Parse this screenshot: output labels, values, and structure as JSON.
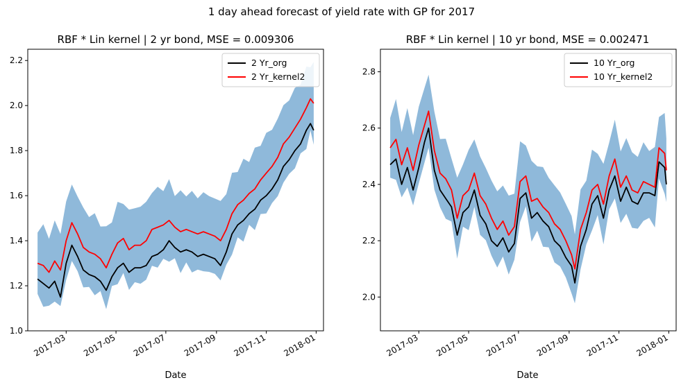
{
  "suptitle": "1 day ahead forecast of yield rate with GP for 2017",
  "chart_data": [
    {
      "type": "line",
      "title": "RBF * Lin kernel | 2 yr bond, MSE = 0.009306",
      "xlabel": "Date",
      "ylabel": "",
      "x_tick_labels": [
        "2017-03",
        "2017-05",
        "2017-07",
        "2017-09",
        "2017-11",
        "2018-01"
      ],
      "y_tick_labels": [
        "1.0",
        "1.2",
        "1.4",
        "1.6",
        "1.8",
        "2.0",
        "2.2"
      ],
      "ylim": [
        1.0,
        2.25
      ],
      "grid": false,
      "legend_position": "top-right",
      "band_color": "#8fb9da",
      "series": [
        {
          "name": "2 Yr_org",
          "color": "#000000",
          "points": [
            [
              "2017-01-25",
              1.23
            ],
            [
              "2017-02-01",
              1.21
            ],
            [
              "2017-02-08",
              1.19
            ],
            [
              "2017-02-15",
              1.22
            ],
            [
              "2017-02-22",
              1.15
            ],
            [
              "2017-03-01",
              1.3
            ],
            [
              "2017-03-08",
              1.38
            ],
            [
              "2017-03-15",
              1.33
            ],
            [
              "2017-03-22",
              1.27
            ],
            [
              "2017-03-29",
              1.25
            ],
            [
              "2017-04-05",
              1.24
            ],
            [
              "2017-04-12",
              1.22
            ],
            [
              "2017-04-19",
              1.18
            ],
            [
              "2017-04-26",
              1.24
            ],
            [
              "2017-05-03",
              1.28
            ],
            [
              "2017-05-10",
              1.3
            ],
            [
              "2017-05-17",
              1.26
            ],
            [
              "2017-05-24",
              1.28
            ],
            [
              "2017-05-31",
              1.28
            ],
            [
              "2017-06-07",
              1.29
            ],
            [
              "2017-06-14",
              1.33
            ],
            [
              "2017-06-21",
              1.34
            ],
            [
              "2017-06-28",
              1.36
            ],
            [
              "2017-07-05",
              1.4
            ],
            [
              "2017-07-12",
              1.37
            ],
            [
              "2017-07-19",
              1.35
            ],
            [
              "2017-07-26",
              1.36
            ],
            [
              "2017-08-02",
              1.35
            ],
            [
              "2017-08-09",
              1.33
            ],
            [
              "2017-08-16",
              1.34
            ],
            [
              "2017-08-23",
              1.33
            ],
            [
              "2017-08-30",
              1.32
            ],
            [
              "2017-09-06",
              1.29
            ],
            [
              "2017-09-13",
              1.35
            ],
            [
              "2017-09-20",
              1.43
            ],
            [
              "2017-09-27",
              1.47
            ],
            [
              "2017-10-04",
              1.49
            ],
            [
              "2017-10-11",
              1.52
            ],
            [
              "2017-10-18",
              1.54
            ],
            [
              "2017-10-25",
              1.58
            ],
            [
              "2017-11-01",
              1.6
            ],
            [
              "2017-11-08",
              1.63
            ],
            [
              "2017-11-15",
              1.67
            ],
            [
              "2017-11-22",
              1.73
            ],
            [
              "2017-11-29",
              1.76
            ],
            [
              "2017-12-06",
              1.8
            ],
            [
              "2017-12-13",
              1.83
            ],
            [
              "2017-12-20",
              1.89
            ],
            [
              "2017-12-25",
              1.92
            ],
            [
              "2017-12-29",
              1.89
            ]
          ]
        },
        {
          "name": "2 Yr_kernel2",
          "color": "#ff0000",
          "points": [
            [
              "2017-01-25",
              1.3
            ],
            [
              "2017-02-01",
              1.29
            ],
            [
              "2017-02-08",
              1.26
            ],
            [
              "2017-02-15",
              1.31
            ],
            [
              "2017-02-22",
              1.27
            ],
            [
              "2017-03-01",
              1.4
            ],
            [
              "2017-03-08",
              1.48
            ],
            [
              "2017-03-15",
              1.43
            ],
            [
              "2017-03-22",
              1.37
            ],
            [
              "2017-03-29",
              1.35
            ],
            [
              "2017-04-05",
              1.34
            ],
            [
              "2017-04-12",
              1.32
            ],
            [
              "2017-04-19",
              1.28
            ],
            [
              "2017-04-26",
              1.34
            ],
            [
              "2017-05-03",
              1.39
            ],
            [
              "2017-05-10",
              1.41
            ],
            [
              "2017-05-17",
              1.36
            ],
            [
              "2017-05-24",
              1.38
            ],
            [
              "2017-05-31",
              1.38
            ],
            [
              "2017-06-07",
              1.4
            ],
            [
              "2017-06-14",
              1.45
            ],
            [
              "2017-06-21",
              1.46
            ],
            [
              "2017-06-28",
              1.47
            ],
            [
              "2017-07-05",
              1.49
            ],
            [
              "2017-07-12",
              1.46
            ],
            [
              "2017-07-19",
              1.44
            ],
            [
              "2017-07-26",
              1.45
            ],
            [
              "2017-08-02",
              1.44
            ],
            [
              "2017-08-09",
              1.43
            ],
            [
              "2017-08-16",
              1.44
            ],
            [
              "2017-08-23",
              1.43
            ],
            [
              "2017-08-30",
              1.42
            ],
            [
              "2017-09-06",
              1.4
            ],
            [
              "2017-09-13",
              1.45
            ],
            [
              "2017-09-20",
              1.52
            ],
            [
              "2017-09-27",
              1.56
            ],
            [
              "2017-10-04",
              1.58
            ],
            [
              "2017-10-11",
              1.61
            ],
            [
              "2017-10-18",
              1.63
            ],
            [
              "2017-10-25",
              1.67
            ],
            [
              "2017-11-01",
              1.7
            ],
            [
              "2017-11-08",
              1.73
            ],
            [
              "2017-11-15",
              1.77
            ],
            [
              "2017-11-22",
              1.83
            ],
            [
              "2017-11-29",
              1.86
            ],
            [
              "2017-12-06",
              1.9
            ],
            [
              "2017-12-13",
              1.94
            ],
            [
              "2017-12-20",
              1.99
            ],
            [
              "2017-12-25",
              2.03
            ],
            [
              "2017-12-29",
              2.01
            ]
          ]
        }
      ]
    },
    {
      "type": "line",
      "title": "RBF * Lin kernel | 10 yr bond, MSE = 0.002471",
      "xlabel": "Date",
      "ylabel": "",
      "x_tick_labels": [
        "2017-03",
        "2017-05",
        "2017-07",
        "2017-09",
        "2017-11",
        "2018-01"
      ],
      "y_tick_labels": [
        "2.0",
        "2.2",
        "2.4",
        "2.6",
        "2.8"
      ],
      "ylim": [
        1.88,
        2.88
      ],
      "grid": false,
      "legend_position": "top-right",
      "band_color": "#8fb9da",
      "series": [
        {
          "name": "10 Yr_org",
          "color": "#000000",
          "points": [
            [
              "2017-01-25",
              2.47
            ],
            [
              "2017-02-01",
              2.49
            ],
            [
              "2017-02-08",
              2.4
            ],
            [
              "2017-02-15",
              2.46
            ],
            [
              "2017-02-22",
              2.38
            ],
            [
              "2017-03-01",
              2.46
            ],
            [
              "2017-03-08",
              2.55
            ],
            [
              "2017-03-13",
              2.6
            ],
            [
              "2017-03-20",
              2.45
            ],
            [
              "2017-03-27",
              2.38
            ],
            [
              "2017-04-03",
              2.35
            ],
            [
              "2017-04-10",
              2.32
            ],
            [
              "2017-04-17",
              2.22
            ],
            [
              "2017-04-24",
              2.3
            ],
            [
              "2017-05-01",
              2.32
            ],
            [
              "2017-05-08",
              2.38
            ],
            [
              "2017-05-15",
              2.29
            ],
            [
              "2017-05-22",
              2.26
            ],
            [
              "2017-05-29",
              2.2
            ],
            [
              "2017-06-05",
              2.18
            ],
            [
              "2017-06-12",
              2.21
            ],
            [
              "2017-06-19",
              2.16
            ],
            [
              "2017-06-26",
              2.19
            ],
            [
              "2017-07-03",
              2.35
            ],
            [
              "2017-07-10",
              2.37
            ],
            [
              "2017-07-17",
              2.28
            ],
            [
              "2017-07-24",
              2.3
            ],
            [
              "2017-07-31",
              2.27
            ],
            [
              "2017-08-07",
              2.25
            ],
            [
              "2017-08-14",
              2.2
            ],
            [
              "2017-08-21",
              2.18
            ],
            [
              "2017-08-28",
              2.14
            ],
            [
              "2017-09-04",
              2.11
            ],
            [
              "2017-09-08",
              2.05
            ],
            [
              "2017-09-15",
              2.18
            ],
            [
              "2017-09-22",
              2.24
            ],
            [
              "2017-09-29",
              2.33
            ],
            [
              "2017-10-06",
              2.36
            ],
            [
              "2017-10-13",
              2.28
            ],
            [
              "2017-10-20",
              2.38
            ],
            [
              "2017-10-27",
              2.43
            ],
            [
              "2017-11-03",
              2.34
            ],
            [
              "2017-11-10",
              2.39
            ],
            [
              "2017-11-17",
              2.34
            ],
            [
              "2017-11-24",
              2.33
            ],
            [
              "2017-12-01",
              2.37
            ],
            [
              "2017-12-08",
              2.37
            ],
            [
              "2017-12-15",
              2.36
            ],
            [
              "2017-12-20",
              2.48
            ],
            [
              "2017-12-27",
              2.46
            ],
            [
              "2017-12-29",
              2.4
            ]
          ]
        },
        {
          "name": "10 Yr_kernel2",
          "color": "#ff0000",
          "points": [
            [
              "2017-01-25",
              2.53
            ],
            [
              "2017-02-01",
              2.56
            ],
            [
              "2017-02-08",
              2.47
            ],
            [
              "2017-02-15",
              2.53
            ],
            [
              "2017-02-22",
              2.45
            ],
            [
              "2017-03-01",
              2.54
            ],
            [
              "2017-03-08",
              2.61
            ],
            [
              "2017-03-13",
              2.66
            ],
            [
              "2017-03-20",
              2.52
            ],
            [
              "2017-03-27",
              2.44
            ],
            [
              "2017-04-03",
              2.42
            ],
            [
              "2017-04-10",
              2.38
            ],
            [
              "2017-04-17",
              2.28
            ],
            [
              "2017-04-24",
              2.36
            ],
            [
              "2017-05-01",
              2.38
            ],
            [
              "2017-05-08",
              2.44
            ],
            [
              "2017-05-15",
              2.36
            ],
            [
              "2017-05-22",
              2.33
            ],
            [
              "2017-05-29",
              2.28
            ],
            [
              "2017-06-05",
              2.24
            ],
            [
              "2017-06-12",
              2.27
            ],
            [
              "2017-06-19",
              2.22
            ],
            [
              "2017-06-26",
              2.25
            ],
            [
              "2017-07-03",
              2.41
            ],
            [
              "2017-07-10",
              2.43
            ],
            [
              "2017-07-17",
              2.34
            ],
            [
              "2017-07-24",
              2.35
            ],
            [
              "2017-07-31",
              2.32
            ],
            [
              "2017-08-07",
              2.3
            ],
            [
              "2017-08-14",
              2.26
            ],
            [
              "2017-08-21",
              2.24
            ],
            [
              "2017-08-28",
              2.2
            ],
            [
              "2017-09-04",
              2.15
            ],
            [
              "2017-09-08",
              2.1
            ],
            [
              "2017-09-15",
              2.24
            ],
            [
              "2017-09-22",
              2.3
            ],
            [
              "2017-09-29",
              2.38
            ],
            [
              "2017-10-06",
              2.4
            ],
            [
              "2017-10-13",
              2.33
            ],
            [
              "2017-10-20",
              2.43
            ],
            [
              "2017-10-27",
              2.49
            ],
            [
              "2017-11-03",
              2.39
            ],
            [
              "2017-11-10",
              2.43
            ],
            [
              "2017-11-17",
              2.38
            ],
            [
              "2017-11-24",
              2.37
            ],
            [
              "2017-12-01",
              2.41
            ],
            [
              "2017-12-08",
              2.4
            ],
            [
              "2017-12-15",
              2.39
            ],
            [
              "2017-12-20",
              2.53
            ],
            [
              "2017-12-27",
              2.51
            ],
            [
              "2017-12-29",
              2.45
            ]
          ]
        }
      ]
    }
  ]
}
